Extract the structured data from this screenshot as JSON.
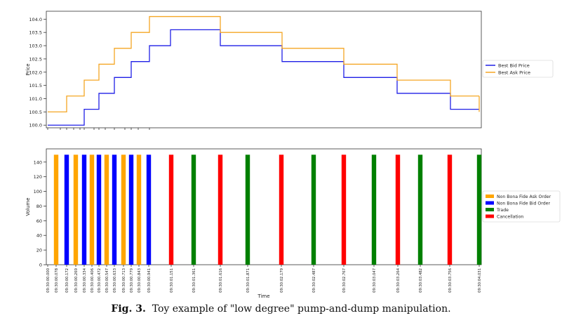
{
  "caption": {
    "label": "Fig. 3.",
    "text": "Toy example of \"low degree\" pump-and-dump manipulation."
  },
  "colors": {
    "bid": "#1f1fe6",
    "ask": "#f5a623",
    "non_bona_fide_ask": "#ffa500",
    "non_bona_fide_bid": "#0000ff",
    "trade": "#008000",
    "cancellation": "#ff0000"
  },
  "chart_data": [
    {
      "type": "line",
      "step": true,
      "ylabel": "Price",
      "xlabel": "",
      "ylim": [
        99.9,
        104.3
      ],
      "yticks": [
        "100.0",
        "100.5",
        "101.0",
        "101.5",
        "102.0",
        "102.5",
        "103.0",
        "103.5",
        "104.0"
      ],
      "legend_position": "right",
      "series": [
        {
          "name": "Best Bid Price",
          "color": "#1f1fe6",
          "x": [
            0,
            1,
            2,
            3,
            4,
            5,
            6,
            7,
            8,
            9,
            10,
            11,
            12,
            13,
            14,
            15,
            16,
            17,
            18,
            19
          ],
          "values": [
            100.0,
            100.0,
            100.6,
            101.2,
            101.8,
            102.4,
            103.0,
            103.6,
            103.6,
            103.0,
            103.0,
            102.4,
            102.4,
            101.8,
            101.8,
            101.2,
            101.2,
            100.6,
            100.6,
            100.0
          ]
        },
        {
          "name": "Best Ask Price",
          "color": "#f5a623",
          "x": [
            0,
            1,
            2,
            3,
            4,
            5,
            6,
            7,
            8,
            9,
            10,
            11,
            12,
            13,
            14,
            15,
            16,
            17,
            18,
            19
          ],
          "values": [
            100.5,
            101.1,
            101.7,
            102.3,
            102.9,
            103.5,
            104.1,
            104.1,
            104.1,
            103.5,
            103.5,
            102.9,
            102.9,
            102.3,
            102.3,
            101.7,
            101.7,
            101.1,
            101.1,
            101.1
          ]
        }
      ]
    },
    {
      "type": "bar",
      "xlabel": "Time",
      "ylabel": "Volume",
      "ylim": [
        0,
        158
      ],
      "yticks": [
        "0",
        "20",
        "40",
        "60",
        "80",
        "100",
        "120",
        "140"
      ],
      "legend_position": "right",
      "legend": [
        {
          "label": "Non Bona Fide Ask Order",
          "color": "#ffa500"
        },
        {
          "label": "Non Bona Fide Bid Order",
          "color": "#0000ff"
        },
        {
          "label": "Trade",
          "color": "#008000"
        },
        {
          "label": "Cancellation",
          "color": "#ff0000"
        }
      ],
      "categories": [
        "09:30:00.000",
        "09:30:00.078",
        "09:30:00.172",
        "09:30:00.269",
        "09:30:00.334",
        "09:30:00.406",
        "09:30:00.472",
        "09:30:00.547",
        "09:30:00.633",
        "09:30:00.713",
        "09:30:00.779",
        "09:30:00.843",
        "09:30:00.941",
        "09:30:01.151",
        "09:30:01.361",
        "09:30:01.616",
        "09:30:01.871",
        "09:30:02.179",
        "09:30:02.487",
        "09:30:02.767",
        "09:30:03.047",
        "09:30:03.264",
        "09:30:03.482",
        "09:30:03.756",
        "09:30:04.031"
      ],
      "bars": [
        {
          "x": 0.0,
          "value": 150,
          "type": "Non Bona Fide Ask Order"
        },
        {
          "x": 0.078,
          "value": 150,
          "type": "Non Bona Fide Bid Order"
        },
        {
          "x": 0.172,
          "value": 150,
          "type": "Non Bona Fide Ask Order"
        },
        {
          "x": 0.269,
          "value": 150,
          "type": "Non Bona Fide Bid Order"
        },
        {
          "x": 0.334,
          "value": 150,
          "type": "Non Bona Fide Ask Order"
        },
        {
          "x": 0.406,
          "value": 150,
          "type": "Non Bona Fide Bid Order"
        },
        {
          "x": 0.472,
          "value": 150,
          "type": "Non Bona Fide Ask Order"
        },
        {
          "x": 0.547,
          "value": 150,
          "type": "Non Bona Fide Bid Order"
        },
        {
          "x": 0.633,
          "value": 150,
          "type": "Non Bona Fide Ask Order"
        },
        {
          "x": 0.713,
          "value": 150,
          "type": "Non Bona Fide Bid Order"
        },
        {
          "x": 0.779,
          "value": 150,
          "type": "Non Bona Fide Ask Order"
        },
        {
          "x": 0.843,
          "value": 150,
          "type": "Non Bona Fide Bid Order"
        },
        {
          "x": 1.151,
          "value": 150,
          "type": "Cancellation"
        },
        {
          "x": 1.361,
          "value": 150,
          "type": "Trade"
        },
        {
          "x": 1.616,
          "value": 150,
          "type": "Cancellation"
        },
        {
          "x": 1.871,
          "value": 150,
          "type": "Trade"
        },
        {
          "x": 2.179,
          "value": 150,
          "type": "Cancellation"
        },
        {
          "x": 2.487,
          "value": 150,
          "type": "Trade"
        },
        {
          "x": 2.767,
          "value": 150,
          "type": "Cancellation"
        },
        {
          "x": 3.047,
          "value": 150,
          "type": "Trade"
        },
        {
          "x": 3.264,
          "value": 150,
          "type": "Cancellation"
        },
        {
          "x": 3.482,
          "value": 150,
          "type": "Trade"
        },
        {
          "x": 3.756,
          "value": 150,
          "type": "Cancellation"
        },
        {
          "x": 4.031,
          "value": 150,
          "type": "Trade"
        }
      ]
    }
  ]
}
